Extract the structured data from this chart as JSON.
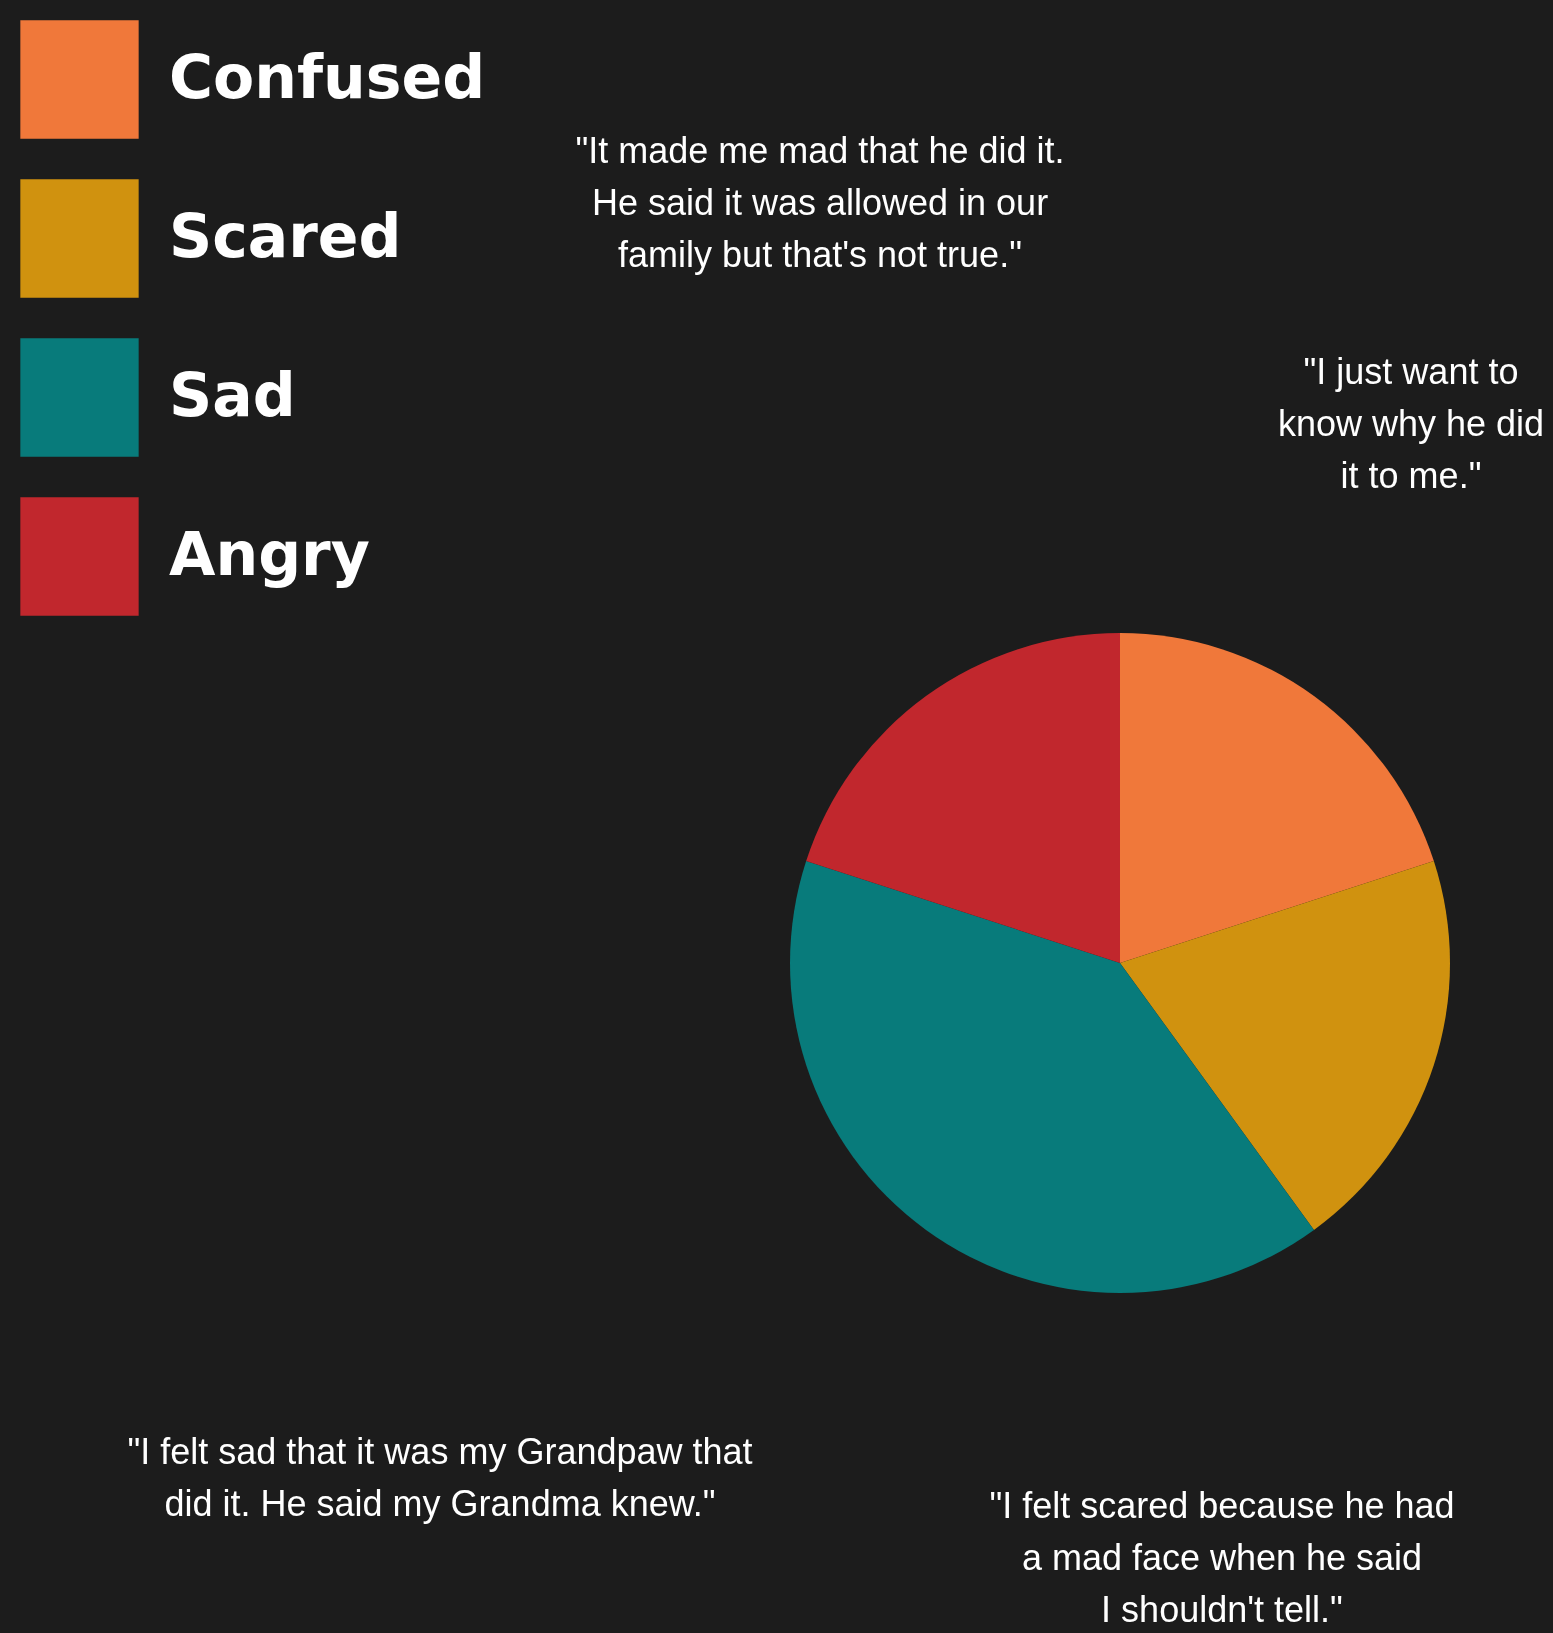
{
  "chart_data": {
    "type": "pie",
    "categories": [
      "Confused",
      "Scared",
      "Sad",
      "Angry"
    ],
    "values": [
      20,
      20,
      40,
      20
    ],
    "colors": [
      "#f0783a",
      "#d0920f",
      "#087b7b",
      "#c1272d"
    ],
    "legend": "top left",
    "annotations": [
      "\"It made me mad that he did it.\nHe said it was allowed in our\nfamily but that's not true.\"",
      "\"I just want to\nknow why he did\nit to me.\"",
      "\"I felt sad that it was my Grandpaw that\ndid it. He said my Grandma knew.\"",
      "\"I felt scared because he had\na mad face when he said\nI shouldn't tell.\""
    ]
  }
}
